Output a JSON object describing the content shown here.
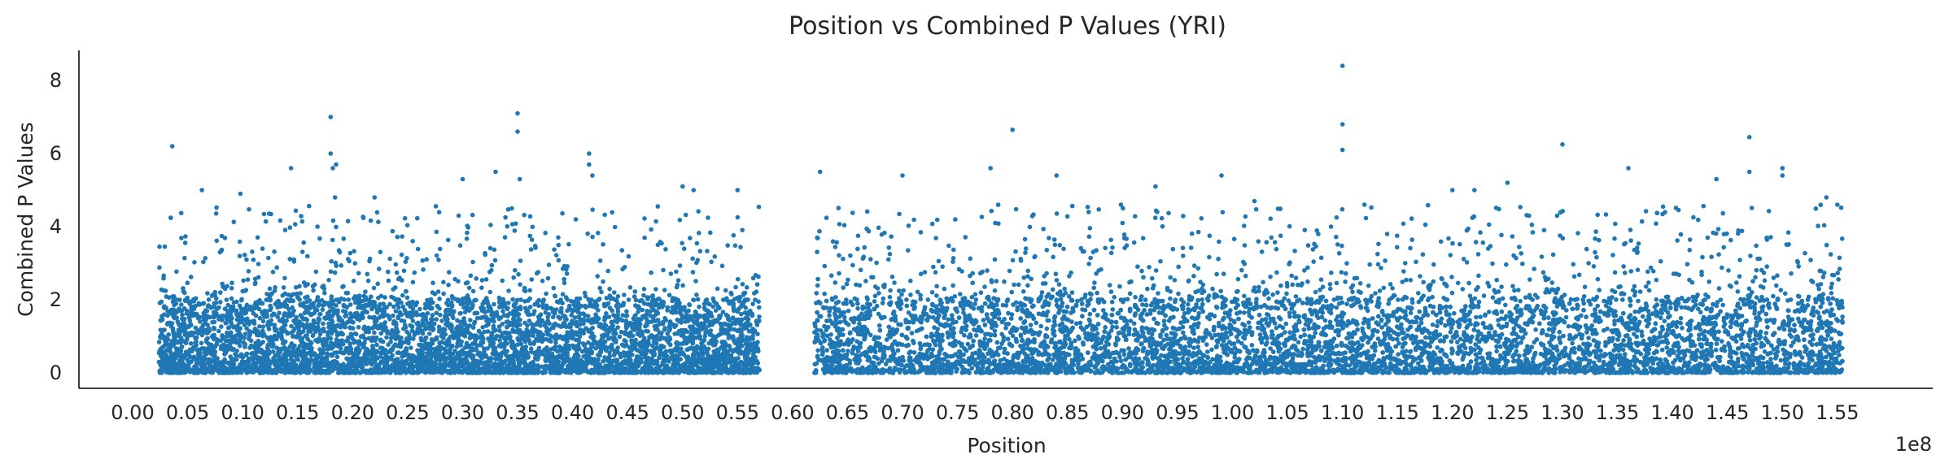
{
  "chart_data": {
    "type": "scatter",
    "title": "Position vs Combined P Values (YRI)",
    "xlabel": "Position",
    "ylabel": "Combined P Values",
    "x_offset_label": "1e8",
    "xlim": [
      0.0,
      1.6
    ],
    "ylim": [
      -0.35,
      8.8
    ],
    "x_ticks": [
      0.0,
      0.05,
      0.1,
      0.15,
      0.2,
      0.25,
      0.3,
      0.35,
      0.4,
      0.45,
      0.5,
      0.55,
      0.6,
      0.65,
      0.7,
      0.75,
      0.8,
      0.85,
      0.9,
      0.95,
      1.0,
      1.05,
      1.1,
      1.15,
      1.2,
      1.25,
      1.3,
      1.35,
      1.4,
      1.45,
      1.5,
      1.55
    ],
    "x_tick_labels": [
      "0.00",
      "0.05",
      "0.10",
      "0.15",
      "0.20",
      "0.25",
      "0.30",
      "0.35",
      "0.40",
      "0.45",
      "0.50",
      "0.55",
      "0.60",
      "0.65",
      "0.70",
      "0.75",
      "0.80",
      "0.85",
      "0.90",
      "0.95",
      "1.00",
      "1.05",
      "1.10",
      "1.15",
      "1.20",
      "1.25",
      "1.30",
      "1.35",
      "1.40",
      "1.45",
      "1.50",
      "1.55"
    ],
    "y_ticks": [
      0,
      2,
      4,
      6,
      8
    ],
    "y_tick_labels": [
      "0",
      "2",
      "4",
      "6",
      "8"
    ],
    "grid": false,
    "legend": "none",
    "color": "#1f77b4",
    "points": [
      [
        0.024,
        0.3
      ],
      [
        0.036,
        6.2
      ],
      [
        0.063,
        5.0
      ],
      [
        0.098,
        4.9
      ],
      [
        0.144,
        5.6
      ],
      [
        0.168,
        4.0
      ],
      [
        0.18,
        7.0
      ],
      [
        0.18,
        6.0
      ],
      [
        0.185,
        5.7
      ],
      [
        0.182,
        5.6
      ],
      [
        0.184,
        4.8
      ],
      [
        0.22,
        4.8
      ],
      [
        0.3,
        5.3
      ],
      [
        0.33,
        5.5
      ],
      [
        0.35,
        7.1
      ],
      [
        0.35,
        6.6
      ],
      [
        0.352,
        5.3
      ],
      [
        0.415,
        6.0
      ],
      [
        0.415,
        5.7
      ],
      [
        0.418,
        5.4
      ],
      [
        0.5,
        5.1
      ],
      [
        0.51,
        5.0
      ],
      [
        0.55,
        5.0
      ],
      [
        0.625,
        5.5
      ],
      [
        0.7,
        5.4
      ],
      [
        0.78,
        5.6
      ],
      [
        0.8,
        6.65
      ],
      [
        0.84,
        5.4
      ],
      [
        0.9,
        4.1
      ],
      [
        0.93,
        5.1
      ],
      [
        0.99,
        5.4
      ],
      [
        1.02,
        4.7
      ],
      [
        1.1,
        8.4
      ],
      [
        1.1,
        6.8
      ],
      [
        1.1,
        6.1
      ],
      [
        1.12,
        4.6
      ],
      [
        1.2,
        5.0
      ],
      [
        1.22,
        5.0
      ],
      [
        1.25,
        5.2
      ],
      [
        1.3,
        6.25
      ],
      [
        1.36,
        5.6
      ],
      [
        1.44,
        5.3
      ],
      [
        1.47,
        6.45
      ],
      [
        1.47,
        5.5
      ],
      [
        1.5,
        5.6
      ],
      [
        1.5,
        5.4
      ],
      [
        1.54,
        4.8
      ],
      [
        1.55,
        4.6
      ]
    ],
    "dense_regions": [
      {
        "x_start": 0.024,
        "x_end": 0.57,
        "y_max": 2.0
      },
      {
        "x_start": 0.62,
        "x_end": 1.555,
        "y_max": 2.0
      }
    ]
  }
}
